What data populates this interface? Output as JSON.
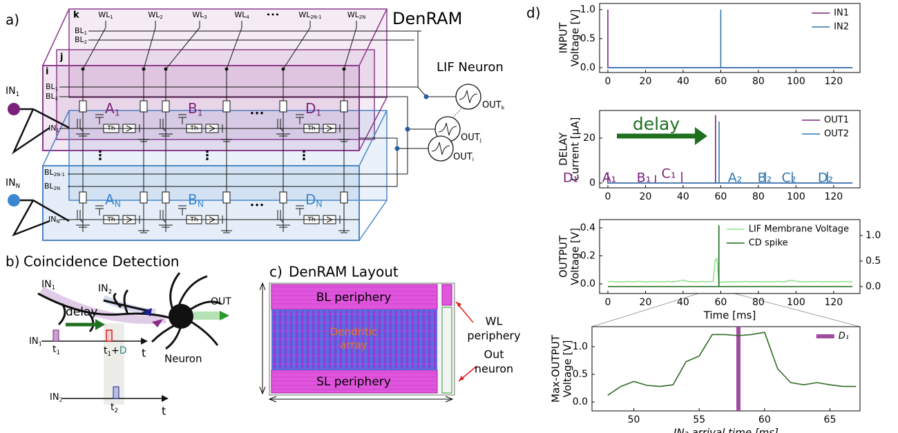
{
  "panel_a": {
    "label": "a)",
    "title": "DenRAM",
    "neuron_title": "LIF Neuron",
    "layers": [
      "k",
      "j",
      "i"
    ],
    "word_lines": [
      {
        "text": "WL",
        "sub": "1"
      },
      {
        "text": "WL",
        "sub": "2"
      },
      {
        "text": "WL",
        "sub": "3"
      },
      {
        "text": "WL",
        "sub": "4"
      },
      {
        "text": "WL",
        "sub": "2N-1"
      },
      {
        "text": "WL",
        "sub": "2N"
      }
    ],
    "wl_ellipsis": "•••",
    "back_bit_lines": [
      {
        "text": "BL",
        "sub": "1"
      },
      {
        "text": "BL",
        "sub": "2"
      }
    ],
    "inputs": [
      {
        "text": "IN",
        "sub": "1"
      },
      {
        "text": "IN",
        "sub": "N"
      }
    ],
    "bit_lines_top": [
      {
        "text": "BL",
        "sub": "1"
      },
      {
        "text": "BL",
        "sub": "2"
      }
    ],
    "bit_lines_bottom": [
      {
        "text": "BL",
        "sub": "2N-1"
      },
      {
        "text": "BL",
        "sub": "2N"
      }
    ],
    "row_inputs": [
      {
        "text": "IN",
        "sub": "1"
      },
      {
        "text": "IN",
        "sub": "N"
      }
    ],
    "cells_top": [
      {
        "text": "A",
        "sub": "1"
      },
      {
        "text": "B",
        "sub": "1"
      },
      {
        "text": "D",
        "sub": "1"
      }
    ],
    "cells_bottom": [
      {
        "text": "A",
        "sub": "N"
      },
      {
        "text": "B",
        "sub": "N"
      },
      {
        "text": "D",
        "sub": "N"
      }
    ],
    "threshold": "Th",
    "ellipsis": "•••",
    "vertical_ellipsis": "⋮",
    "outputs": [
      {
        "text": "OUT",
        "sub": "k"
      },
      {
        "text": "OUT",
        "sub": "j"
      },
      {
        "text": "OUT",
        "sub": "i"
      }
    ]
  },
  "panel_b": {
    "label": "b)",
    "title": "Coincidence Detection",
    "inputs": [
      {
        "text": "IN",
        "sub": "1"
      },
      {
        "text": "IN",
        "sub": "2"
      }
    ],
    "output": "OUT",
    "neuron": "Neuron",
    "delay": "delay",
    "trace_inputs": [
      {
        "text": "IN",
        "sub": "1"
      },
      {
        "text": "IN",
        "sub": "2"
      }
    ],
    "times": [
      {
        "text": "t",
        "sub": "1"
      },
      {
        "text": "t",
        "sub": "1"
      },
      {
        "text": "t",
        "sub": "2"
      }
    ],
    "plus": "+",
    "delay_symbol": "D",
    "time_axis": "t"
  },
  "panel_c": {
    "label": "c)",
    "title": "DenRAM Layout",
    "top_region": "BL periphery",
    "array": [
      "Dendritic",
      "array"
    ],
    "bottom_region": "SL periphery",
    "wl_region": [
      "WL",
      "periphery"
    ],
    "neuron_region": [
      "Out",
      "neuron"
    ]
  },
  "panel_d": {
    "label": "d)"
  },
  "chart_data": [
    {
      "type": "line",
      "ylabel": [
        "INPUT",
        "Voltage [V]"
      ],
      "xlim": [
        -4.4,
        134
      ],
      "xticks": [
        0,
        20,
        40,
        60,
        80,
        100,
        120
      ],
      "ylim": [
        -0.083,
        1.107
      ],
      "yticks": [
        {
          "value": 0,
          "label": "0.0"
        },
        0.5,
        {
          "value": 1,
          "label": "1.0"
        }
      ],
      "legend": "upper right",
      "series": [
        {
          "name": "IN1",
          "color": "#7b1f7b",
          "x": [
            0,
            0,
            0,
            130
          ],
          "values": [
            0,
            1,
            0,
            0
          ]
        },
        {
          "name": "IN2",
          "color": "#2e78b0",
          "x": [
            0,
            60,
            60,
            60,
            130
          ],
          "values": [
            0,
            0,
            1,
            0,
            0
          ]
        }
      ]
    },
    {
      "type": "line",
      "ylabel": [
        "DELAY",
        "Current [μA]"
      ],
      "xlim": [
        -4.4,
        134
      ],
      "xticks": [
        0,
        20,
        40,
        60,
        80,
        100,
        120
      ],
      "ylim": [
        -2.15,
        32.3
      ],
      "yticks": [
        0,
        20
      ],
      "legend": "upper right",
      "annotation": "delay",
      "series": [
        {
          "name": "OUT1",
          "color": "#7b1f7b",
          "x": [
            0,
            0,
            0,
            25.3,
            25.3,
            25.3,
            39.3,
            39.3,
            39.3,
            57.2,
            57.2,
            57.2,
            130
          ],
          "values": [
            0,
            4.9,
            0,
            0,
            3.5,
            0,
            0,
            5,
            0,
            0,
            30.2,
            0,
            0
          ],
          "labels": [
            "A₁",
            "B₁",
            "C₁",
            "D₁"
          ]
        },
        {
          "name": "OUT2",
          "color": "#2e78b0",
          "x": [
            0,
            59.1,
            59.1,
            59.1,
            83.7,
            83.7,
            83.7,
            98,
            98,
            98,
            116.7,
            116.7,
            116.7,
            130
          ],
          "values": [
            0,
            0,
            27.4,
            0,
            0,
            5,
            0,
            0,
            5,
            0,
            0,
            5,
            0,
            0
          ],
          "labels": [
            "A₂",
            "B₂",
            "C₂",
            "D₂"
          ]
        }
      ]
    },
    {
      "type": "line",
      "ylabel": [
        "OUTPUT",
        "Voltage [V]"
      ],
      "xlabel": "Time [ms]",
      "xlim": [
        -4.4,
        134
      ],
      "xticks": [
        0,
        20,
        40,
        60,
        80,
        100,
        120
      ],
      "ylim": [
        -0.069,
        0.459
      ],
      "yticks": [
        {
          "value": 0,
          "label": "0.0"
        },
        0.2,
        0.4
      ],
      "y2lim": [
        -0.135,
        1.311
      ],
      "y2ticks": [
        {
          "value": 0,
          "label": "0.0"
        },
        0.5,
        {
          "value": 1,
          "label": "1.0"
        }
      ],
      "legend": "upper right",
      "series": [
        {
          "name": "LIF Membrane Voltage",
          "color": "#90e090",
          "x": [
            0,
            2,
            4,
            6,
            8,
            10,
            12,
            14,
            16,
            18,
            20,
            22,
            24,
            26,
            28,
            30,
            32,
            34,
            36,
            38,
            40,
            42,
            44,
            46,
            48,
            50,
            52,
            54,
            56,
            57,
            58,
            59,
            60,
            62,
            64,
            66,
            68,
            70,
            72,
            74,
            76,
            78,
            80,
            82,
            84,
            86,
            88,
            90,
            92,
            94,
            96,
            98,
            100,
            102,
            104,
            106,
            108,
            110,
            112,
            114,
            116,
            118,
            120,
            122,
            124,
            126,
            128,
            130
          ],
          "values": [
            0.015,
            0.018,
            0.014,
            0.016,
            0.013,
            0.017,
            0.015,
            0.014,
            0.018,
            0.016,
            0.013,
            0.015,
            0.017,
            0.014,
            0.016,
            0.015,
            0.018,
            0.014,
            0.016,
            0.021,
            0.026,
            0.019,
            0.015,
            0.016,
            0.014,
            0.017,
            0.015,
            0.016,
            0.018,
            0.17,
            0.18,
            0.005,
            0.012,
            0.014,
            0.015,
            0.013,
            0.016,
            0.014,
            0.015,
            0.017,
            0.014,
            0.016,
            0.015,
            0.013,
            0.016,
            0.014,
            0.015,
            0.017,
            0.016,
            0.014,
            0.022,
            0.025,
            0.018,
            0.016,
            0.015,
            0.014,
            0.016,
            0.015,
            0.017,
            0.014,
            0.016,
            0.015,
            0.014,
            0.016,
            0.015,
            0.017,
            0.014,
            0.015
          ]
        },
        {
          "name": "CD spike",
          "color": "#1a6a1a",
          "axis": "y2",
          "x": [
            0,
            59,
            59,
            59,
            130
          ],
          "values": [
            0,
            0,
            1.2,
            0,
            0
          ]
        }
      ]
    },
    {
      "type": "line",
      "ylabel": [
        "Max-OUTPUT",
        "Voltage [V]"
      ],
      "xlabel": "IN₂ arrival time [ms]",
      "xlim": [
        46.8,
        67.3
      ],
      "xticks": [
        50,
        55,
        60,
        65
      ],
      "ylim": [
        -0.1625,
        1.3625
      ],
      "yticks": [
        {
          "value": 0,
          "label": "0.0"
        },
        0.5,
        {
          "value": 1,
          "label": "1.0"
        }
      ],
      "legend": "upper right",
      "series": [
        {
          "color": "#2e6b22",
          "x": [
            48,
            49,
            50,
            51,
            52,
            53,
            54,
            55,
            56,
            57,
            58,
            59,
            60,
            61,
            62,
            63,
            64,
            65,
            66,
            67
          ],
          "values": [
            0.12,
            0.28,
            0.37,
            0.3,
            0.28,
            0.31,
            0.73,
            0.83,
            1.22,
            1.22,
            1.2,
            1.22,
            1.26,
            0.6,
            0.35,
            0.31,
            0.35,
            0.31,
            0.28,
            0.28
          ]
        }
      ],
      "vlines": [
        {
          "name": "D₁",
          "x": 58,
          "color": "#a04ca0"
        }
      ]
    }
  ]
}
